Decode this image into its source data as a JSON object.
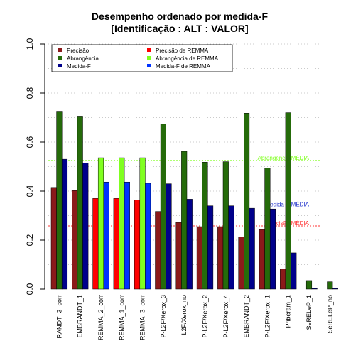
{
  "chart_data": {
    "type": "bar",
    "title": "Desempenho ordenado por medida-F",
    "subtitle": "[Identificação : ALT : VALOR]",
    "ylim": [
      0,
      1
    ],
    "yticks": [
      0.0,
      0.2,
      0.4,
      0.6,
      0.8,
      1.0
    ],
    "ytick_labels": [
      "0.0",
      "0.2",
      "0.4",
      "0.6",
      "0.8",
      "1.0"
    ],
    "grid": "horizontal dotted",
    "legend_position": "top",
    "categories": [
      "RANDT_3_corr",
      "EMBRANDT_1",
      "REMMA_2_corr",
      "REMMA_1_corr",
      "REMMA_3_corr",
      "P-L2F/Xerox_3",
      "L2F/Xerox_no",
      "P-L2F/Xerox_2",
      "P-L2F/Xerox_4",
      "EMBRANDT_2",
      "P-L2F/Xerox_1",
      "Priberam_1",
      "SeRELeP_1",
      "SeRELeP_no"
    ],
    "series": [
      {
        "name": "Precisão",
        "values": [
          0.415,
          0.402,
          0.37,
          0.37,
          0.363,
          0.317,
          0.272,
          0.255,
          0.255,
          0.213,
          0.243,
          0.082,
          0.0,
          0.0
        ]
      },
      {
        "name": "Abrangência",
        "values": [
          0.726,
          0.706,
          0.536,
          0.536,
          0.536,
          0.673,
          0.562,
          0.518,
          0.52,
          0.718,
          0.494,
          0.72,
          0.035,
          0.03
        ]
      },
      {
        "name": "Medida-F",
        "values": [
          0.53,
          0.514,
          0.437,
          0.437,
          0.432,
          0.43,
          0.367,
          0.34,
          0.34,
          0.33,
          0.327,
          0.148,
          0.003,
          0.003
        ]
      }
    ],
    "highlight_remma": [
      false,
      false,
      true,
      true,
      true,
      false,
      false,
      false,
      false,
      false,
      false,
      false,
      false,
      false
    ],
    "legend": [
      {
        "label": "Precisão",
        "color": "#8b1a1a"
      },
      {
        "label": "Abrangência",
        "color": "#256b0a"
      },
      {
        "label": "Medida-F",
        "color": "#00008b"
      },
      {
        "label": "Precisão  de  REMMA",
        "color": "#ff0000"
      },
      {
        "label": "Abrangência  de  REMMA",
        "color": "#80ff20"
      },
      {
        "label": "Medida-F  de  REMMA",
        "color": "#0033ff"
      }
    ],
    "mean_lines": [
      {
        "label": "Abrangência MÉDIA",
        "value": 0.525,
        "color": "#80ff20"
      },
      {
        "label": "Medida-F MÉDIA",
        "value": 0.335,
        "color": "#2233cc"
      },
      {
        "label": "Precisão MÉDIA",
        "value": 0.258,
        "color": "#ff3333"
      }
    ],
    "colors": {
      "precision": "#8b1a1a",
      "recall": "#256b0a",
      "fmeasure": "#00008b",
      "precision_remma": "#ff0000",
      "recall_remma": "#80ff20",
      "fmeasure_remma": "#0033ff"
    }
  }
}
